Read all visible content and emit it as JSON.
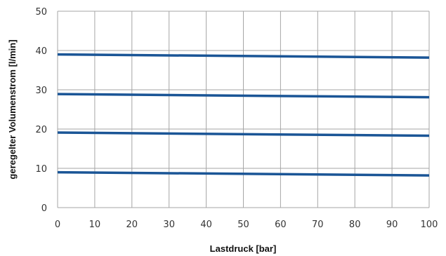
{
  "chart_data": {
    "type": "line",
    "xlabel": "Lastdruck [bar]",
    "ylabel": "geregelter Volumenstrom [l/min]",
    "xlim": [
      0,
      100
    ],
    "ylim": [
      0,
      50
    ],
    "x_ticks": [
      "0",
      "10",
      "20",
      "30",
      "40",
      "50",
      "60",
      "70",
      "80",
      "90",
      "100"
    ],
    "y_ticks": [
      "0",
      "10",
      "20",
      "30",
      "40",
      "50"
    ],
    "grid": true,
    "legend": "none",
    "line_color": "#1a5596",
    "grid_color": "#a6a6a6",
    "series": [
      {
        "x": [
          0,
          100
        ],
        "values": [
          39.0,
          38.2
        ]
      },
      {
        "x": [
          0,
          100
        ],
        "values": [
          28.9,
          28.1
        ]
      },
      {
        "x": [
          0,
          100
        ],
        "values": [
          19.1,
          18.3
        ]
      },
      {
        "x": [
          0,
          100
        ],
        "values": [
          9.0,
          8.2
        ]
      }
    ]
  }
}
